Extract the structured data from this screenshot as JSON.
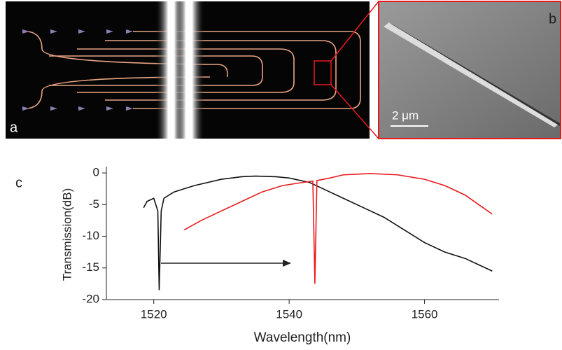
{
  "chart_data": {
    "type": "line",
    "annotations": [
      "a",
      "b",
      "c",
      "2 μm"
    ],
    "xlabel": "Wavelength(nm)",
    "ylabel": "Transmission(dB)",
    "xlim": [
      1513,
      1571
    ],
    "xticks": [
      1520,
      1540,
      1560
    ],
    "ylim": [
      -20,
      1
    ],
    "yticks": [
      0,
      -5,
      -10,
      -15,
      -20
    ],
    "series": [
      {
        "color": "#111111",
        "x": [
          1518.5,
          1519,
          1520,
          1520.6,
          1520.8,
          1521.1,
          1521.5,
          1523,
          1526,
          1530,
          1533,
          1535,
          1538,
          1540,
          1543,
          1545,
          1548,
          1551,
          1554,
          1557,
          1560,
          1563,
          1566,
          1568,
          1570
        ],
        "values": [
          -5.5,
          -4.5,
          -4,
          -6,
          -18.5,
          -6,
          -4,
          -3,
          -2,
          -1,
          -0.6,
          -0.5,
          -0.6,
          -0.8,
          -1.5,
          -2.5,
          -4,
          -5.5,
          -7,
          -9,
          -11,
          -12.5,
          -13.5,
          -14.5,
          -15.5
        ]
      },
      {
        "color": "#e8191c",
        "x": [
          1524.5,
          1527,
          1530,
          1533,
          1536,
          1539,
          1542,
          1543.5,
          1543.8,
          1544.1,
          1546,
          1548,
          1552,
          1556,
          1560,
          1563,
          1566,
          1568,
          1570
        ],
        "values": [
          -9,
          -7.5,
          -6,
          -4.5,
          -3,
          -2,
          -1.5,
          -1.3,
          -17.5,
          -1.2,
          -0.8,
          -0.3,
          -0.1,
          -0.3,
          -1,
          -2,
          -3.5,
          -5,
          -6.5
        ]
      }
    ]
  }
}
